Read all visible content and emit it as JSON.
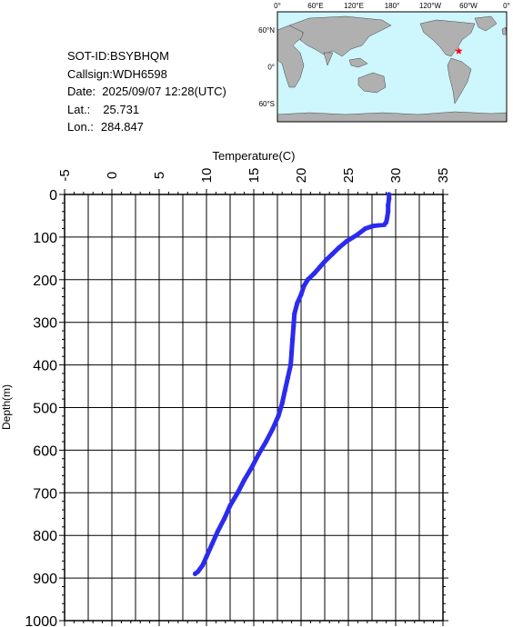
{
  "info": {
    "sot_id": "SOT-ID:BSYBHQM",
    "callsign": "Callsign:WDH6598",
    "date": "Date:  2025/09/07 12:28(UTC)",
    "lat_label": "Lat.:",
    "lat": "25.731",
    "lon_label": "Lon.:",
    "lon": "284.847"
  },
  "map": {
    "lon_ticks": [
      "0°",
      "60°E",
      "120°E",
      "180°",
      "120°W",
      "60°W",
      "0°"
    ],
    "lat_ticks": [
      "60°N",
      "0°",
      "60°S"
    ],
    "ocean_color": "#cdf6fd",
    "land_color": "#b0b0b0",
    "marker": {
      "lat": 25.731,
      "lon": 284.847,
      "color": "#ff0000",
      "symbol": "star"
    }
  },
  "chart_data": {
    "type": "line",
    "title": "",
    "xlabel": "Temperature(C)",
    "ylabel": "Depth(m)",
    "xlim": [
      -5,
      35
    ],
    "ylim": [
      0,
      1000
    ],
    "y_inverted": true,
    "x_axis_position": "top",
    "x_ticks": [
      -5,
      0,
      5,
      10,
      15,
      20,
      25,
      30,
      35
    ],
    "y_ticks": [
      0,
      100,
      200,
      300,
      400,
      500,
      600,
      700,
      800,
      900,
      1000
    ],
    "grid": true,
    "series_color": "#2b2bef",
    "series": [
      {
        "x": [
          29.3,
          29.3,
          29.2,
          29.2,
          29.1,
          29.0,
          28.8,
          27.6,
          26.8,
          25.9,
          24.8,
          24.0,
          23.3,
          22.6,
          22.0,
          21.4,
          20.7,
          20.3,
          20.0,
          19.6,
          19.3,
          19.2,
          19.1,
          19.0,
          18.9,
          18.6,
          18.3,
          18.0,
          17.6,
          17.0,
          16.3,
          15.5,
          14.8,
          14.0,
          13.3,
          12.5,
          11.9,
          11.2,
          10.6,
          10.0,
          9.6,
          9.1,
          8.8
        ],
        "y": [
          0,
          10,
          25,
          40,
          55,
          65,
          71,
          74,
          80,
          95,
          110,
          125,
          140,
          155,
          170,
          185,
          200,
          215,
          235,
          255,
          280,
          310,
          340,
          370,
          400,
          430,
          460,
          490,
          520,
          550,
          580,
          610,
          640,
          670,
          700,
          730,
          760,
          790,
          820,
          850,
          870,
          885,
          890
        ]
      }
    ]
  }
}
